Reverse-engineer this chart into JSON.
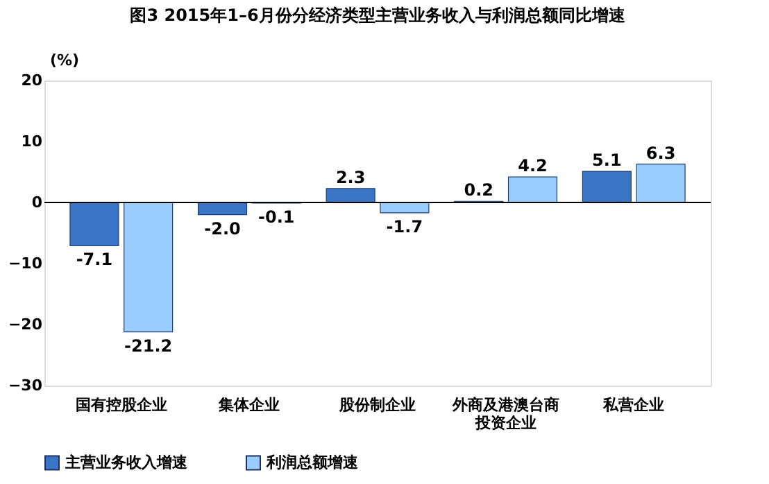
{
  "chart_data": {
    "type": "bar",
    "title": "图3  2015年1–6月份分经济类型主营业务收入与利润总额同比增速",
    "ylabel": "(%)",
    "categories": [
      "国有控股企业",
      "集体企业",
      "股份制企业",
      "外商及港澳台商投资企业",
      "私营企业"
    ],
    "series": [
      {
        "name": "主营业务收入增速",
        "color": "#3a74c4",
        "values": [
          -7.1,
          -2.0,
          2.3,
          0.2,
          5.1
        ],
        "value_labels": [
          "-7.1",
          "-2.0",
          "2.3",
          "0.2",
          "5.1"
        ]
      },
      {
        "name": "利润总额增速",
        "color": "#99ccff",
        "values": [
          -21.2,
          -0.1,
          -1.7,
          4.2,
          6.3
        ],
        "value_labels": [
          "-21.2",
          "-0.1",
          "-1.7",
          "4.2",
          "6.3"
        ]
      }
    ],
    "ylim": [
      -30,
      20
    ],
    "yticks": [
      -30,
      -20,
      -10,
      0,
      10,
      20
    ],
    "grid": false,
    "legend": "bottom",
    "ref_lines": [
      {
        "axis": "y",
        "value": 0
      }
    ]
  }
}
